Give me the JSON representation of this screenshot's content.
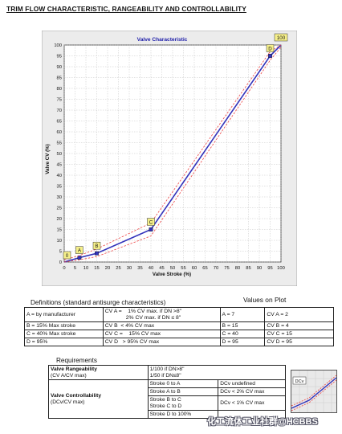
{
  "page": {
    "heading": "TRIM FLOW CHARACTERISTIC, RANGEABILITY AND CONTROLLABILITY"
  },
  "chart_data": {
    "type": "line",
    "title": "Valve Characteristic",
    "xlabel": "Valve Stroke (%)",
    "ylabel": "Valve CV (%)",
    "xlim": [
      0,
      100
    ],
    "ylim": [
      0,
      100
    ],
    "xticks": [
      0,
      5,
      10,
      15,
      20,
      25,
      30,
      35,
      40,
      45,
      50,
      55,
      60,
      65,
      70,
      75,
      80,
      85,
      90,
      95,
      100
    ],
    "yticks": [
      0,
      5,
      10,
      15,
      20,
      25,
      30,
      35,
      40,
      45,
      50,
      55,
      60,
      65,
      70,
      75,
      80,
      85,
      90,
      95,
      100
    ],
    "grid": true,
    "series": [
      {
        "role": "main",
        "color": "#3333bb",
        "x": [
          0,
          7,
          15,
          40,
          95,
          100
        ],
        "y": [
          0,
          2,
          4,
          15,
          95,
          100
        ]
      },
      {
        "role": "upper",
        "color": "#ee4444",
        "x": [
          0,
          7,
          15,
          40,
          95,
          100
        ],
        "y": [
          1,
          3,
          6,
          18,
          97,
          100
        ]
      },
      {
        "role": "lower",
        "color": "#ee4444",
        "x": [
          0,
          7,
          15,
          40,
          95,
          100
        ],
        "y": [
          0,
          1,
          2.5,
          12,
          93,
          99
        ]
      }
    ],
    "annotations": [
      {
        "label": "0",
        "x": 0,
        "y": 0
      },
      {
        "label": "A",
        "x": 7,
        "y": 2
      },
      {
        "label": "B",
        "x": 15,
        "y": 4
      },
      {
        "label": "C",
        "x": 40,
        "y": 15
      },
      {
        "label": "D",
        "x": 95,
        "y": 95
      },
      {
        "label": "100",
        "x": 100,
        "y": 100
      }
    ]
  },
  "definitions": {
    "title": "Definitions (standard antisurge characteristics)",
    "values_title": "Values on Plot",
    "rows": [
      {
        "def": "A = by manufacturer",
        "cv_line1": "CV A =    1% CV max. if DN >8\"",
        "cv_line2": "2% CV max. if DN ≤ 8\"",
        "val": "A = 7",
        "cvval": "CV A = 2"
      },
      {
        "def": "B = 15% Max stroke",
        "cv_line1": "CV B  < 4% CV max",
        "cv_line2": "",
        "val": "B = 15",
        "cvval": "CV B = 4"
      },
      {
        "def": "C = 40% Max stroke",
        "cv_line1": "CV C =    15% CV max",
        "cv_line2": "",
        "val": "C = 40",
        "cvval": "CV C = 15"
      },
      {
        "def": "D = 95%",
        "cv_line1": "CV D   > 95% CV max",
        "cv_line2": "",
        "val": "D = 95",
        "cvval": "CV D = 95"
      }
    ]
  },
  "requirements": {
    "title": "Requirements",
    "rangeability": {
      "label": "Valve Rangeability",
      "sub": "(CV A/CV max)",
      "line1": "1/100 if DN>8\"",
      "line2": "1/50 if DN≤8\""
    },
    "controllability": {
      "label": "Valve Controllability",
      "sub": "(DCv/CV max)",
      "rows": [
        {
          "stroke": "Stroke 0 to A",
          "dcv": "DCv undefined"
        },
        {
          "stroke": "Stroke A to B",
          "dcv": "DCv < 2% CV max"
        },
        {
          "stroke": "Stroke B to C",
          "stroke2": "Stroke C to D",
          "dcv": "DCv < 1% CV max"
        },
        {
          "stroke": "Stroke D to 100%",
          "dcv": ""
        }
      ]
    },
    "mini_label": "DCv"
  },
  "watermark": "化工流体工业社群@HCBBS"
}
